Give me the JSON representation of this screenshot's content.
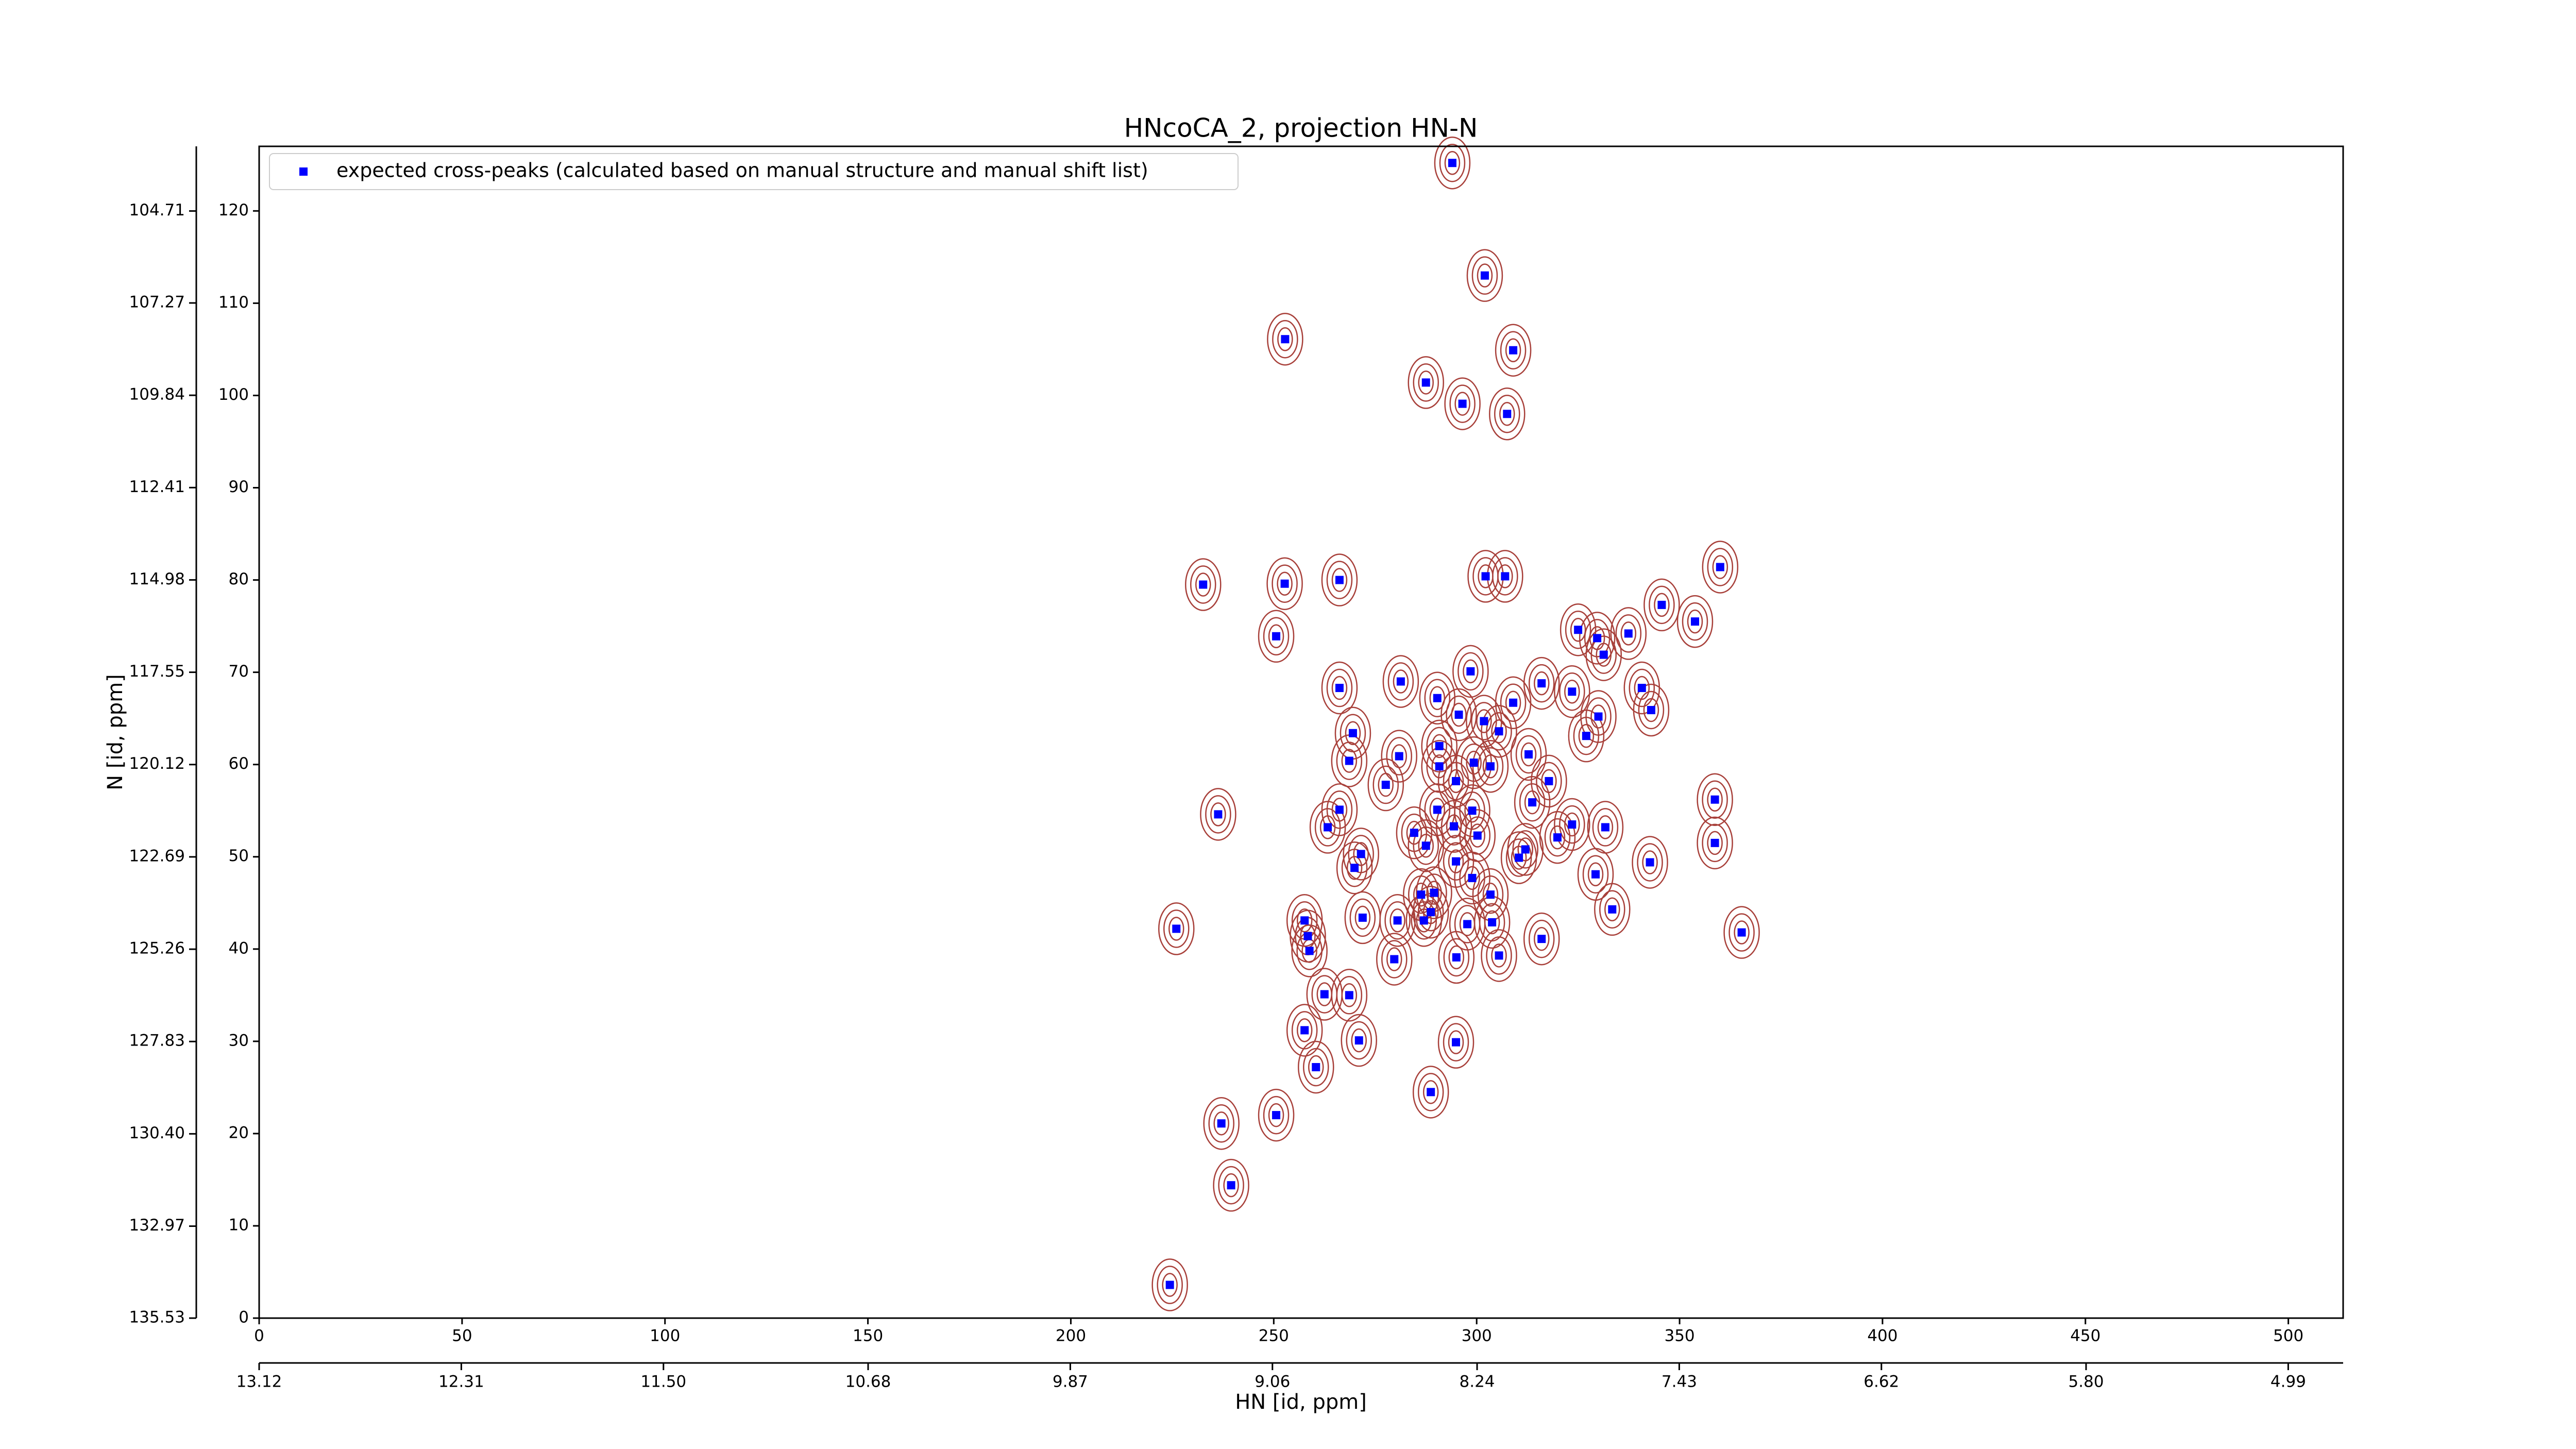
{
  "chart_data": {
    "type": "scatter",
    "title": "HNcoCA_2, projection HN-N",
    "xlabel": "HN [id, ppm]",
    "ylabel": "N [id, ppm]",
    "xlim": [
      0,
      513.5
    ],
    "ylim": [
      0,
      127
    ],
    "xticks": [
      0,
      50,
      100,
      150,
      200,
      250,
      300,
      350,
      400,
      450,
      500
    ],
    "yticks": [
      0,
      10,
      20,
      30,
      40,
      50,
      60,
      70,
      80,
      90,
      100,
      110,
      120
    ],
    "x2lim": [
      13.12,
      4.77
    ],
    "x2ticks": [
      13.12,
      12.31,
      {
        "value": 11.5,
        "label": "11.50"
      },
      10.68,
      9.87,
      9.06,
      8.24,
      7.43,
      6.62,
      {
        "value": 5.8,
        "label": "5.80"
      },
      4.99
    ],
    "y2lim": [
      135.53,
      102.91
    ],
    "y2ticks": [
      104.71,
      107.27,
      109.84,
      112.41,
      114.98,
      117.55,
      120.12,
      122.69,
      125.26,
      127.83,
      {
        "value": 130.4,
        "label": "130.40"
      },
      132.97,
      135.53
    ],
    "legend": "upper left",
    "contour_color": "#a8403a",
    "series": [
      {
        "name": "expected cross-peaks (calculated based on manual structure and manual shift list)",
        "color": "#0000ff",
        "x": [
          294,
          302,
          252.8,
          309,
          287.5,
          296.5,
          307.5,
          360,
          232.6,
          252.7,
          266.2,
          302.2,
          307,
          345.6,
          353.8,
          325,
          337.4,
          250.6,
          329.7,
          331.3,
          298.5,
          266.2,
          281.3,
          316,
          323.5,
          340.7,
          343,
          290.3,
          309,
          295.6,
          301.8,
          305.5,
          269.5,
          330,
          327,
          290.8,
          280.9,
          312.8,
          299.3,
          268.6,
          290.8,
          303.4,
          294.9,
          277.6,
          317.8,
          358.7,
          266.2,
          313.7,
          290.3,
          298.9,
          236.3,
          323.5,
          294.4,
          263.3,
          284.6,
          300.2,
          319.9,
          331.7,
          358.7,
          287.5,
          312,
          271.5,
          310.4,
          342.7,
          294.9,
          329.3,
          298.9,
          269.9,
          286.3,
          289.5,
          303.4,
          333.4,
          271.9,
          288.7,
          287,
          280.5,
          257.6,
          297.7,
          303.8,
          226,
          258.4,
          365.3,
          316,
          258.8,
          305.5,
          295,
          279.7,
          262.5,
          268.6,
          257.6,
          271,
          294.9,
          260.4,
          288.7,
          250.6,
          237.1,
          239.5,
          224.4
        ],
        "values": [
          125.2,
          113,
          106.1,
          104.9,
          101.4,
          99.1,
          98,
          81.4,
          79.5,
          79.6,
          80,
          80.4,
          80.4,
          77.3,
          75.5,
          74.6,
          74.2,
          73.9,
          73.7,
          71.9,
          70.1,
          68.3,
          69,
          68.8,
          67.9,
          68.3,
          65.9,
          67.2,
          66.7,
          65.4,
          64.7,
          63.6,
          63.4,
          65.2,
          63.1,
          62,
          60.9,
          61.1,
          60.2,
          60.4,
          59.8,
          59.8,
          58.2,
          57.8,
          58.2,
          56.2,
          55.1,
          55.9,
          55.1,
          55,
          54.6,
          53.5,
          53.3,
          53.2,
          52.6,
          52.3,
          52.1,
          53.2,
          51.5,
          51.2,
          50.8,
          50.3,
          49.9,
          49.4,
          49.5,
          48.1,
          47.7,
          48.8,
          45.9,
          46.1,
          45.9,
          44.3,
          43.4,
          44,
          43.1,
          43.1,
          43.1,
          42.7,
          42.9,
          42.2,
          41.4,
          41.8,
          41.1,
          39.8,
          39.3,
          39.1,
          38.9,
          35.1,
          35,
          31.2,
          30.1,
          29.9,
          27.2,
          24.5,
          22,
          21.1,
          14.4,
          3.6
        ]
      }
    ]
  }
}
